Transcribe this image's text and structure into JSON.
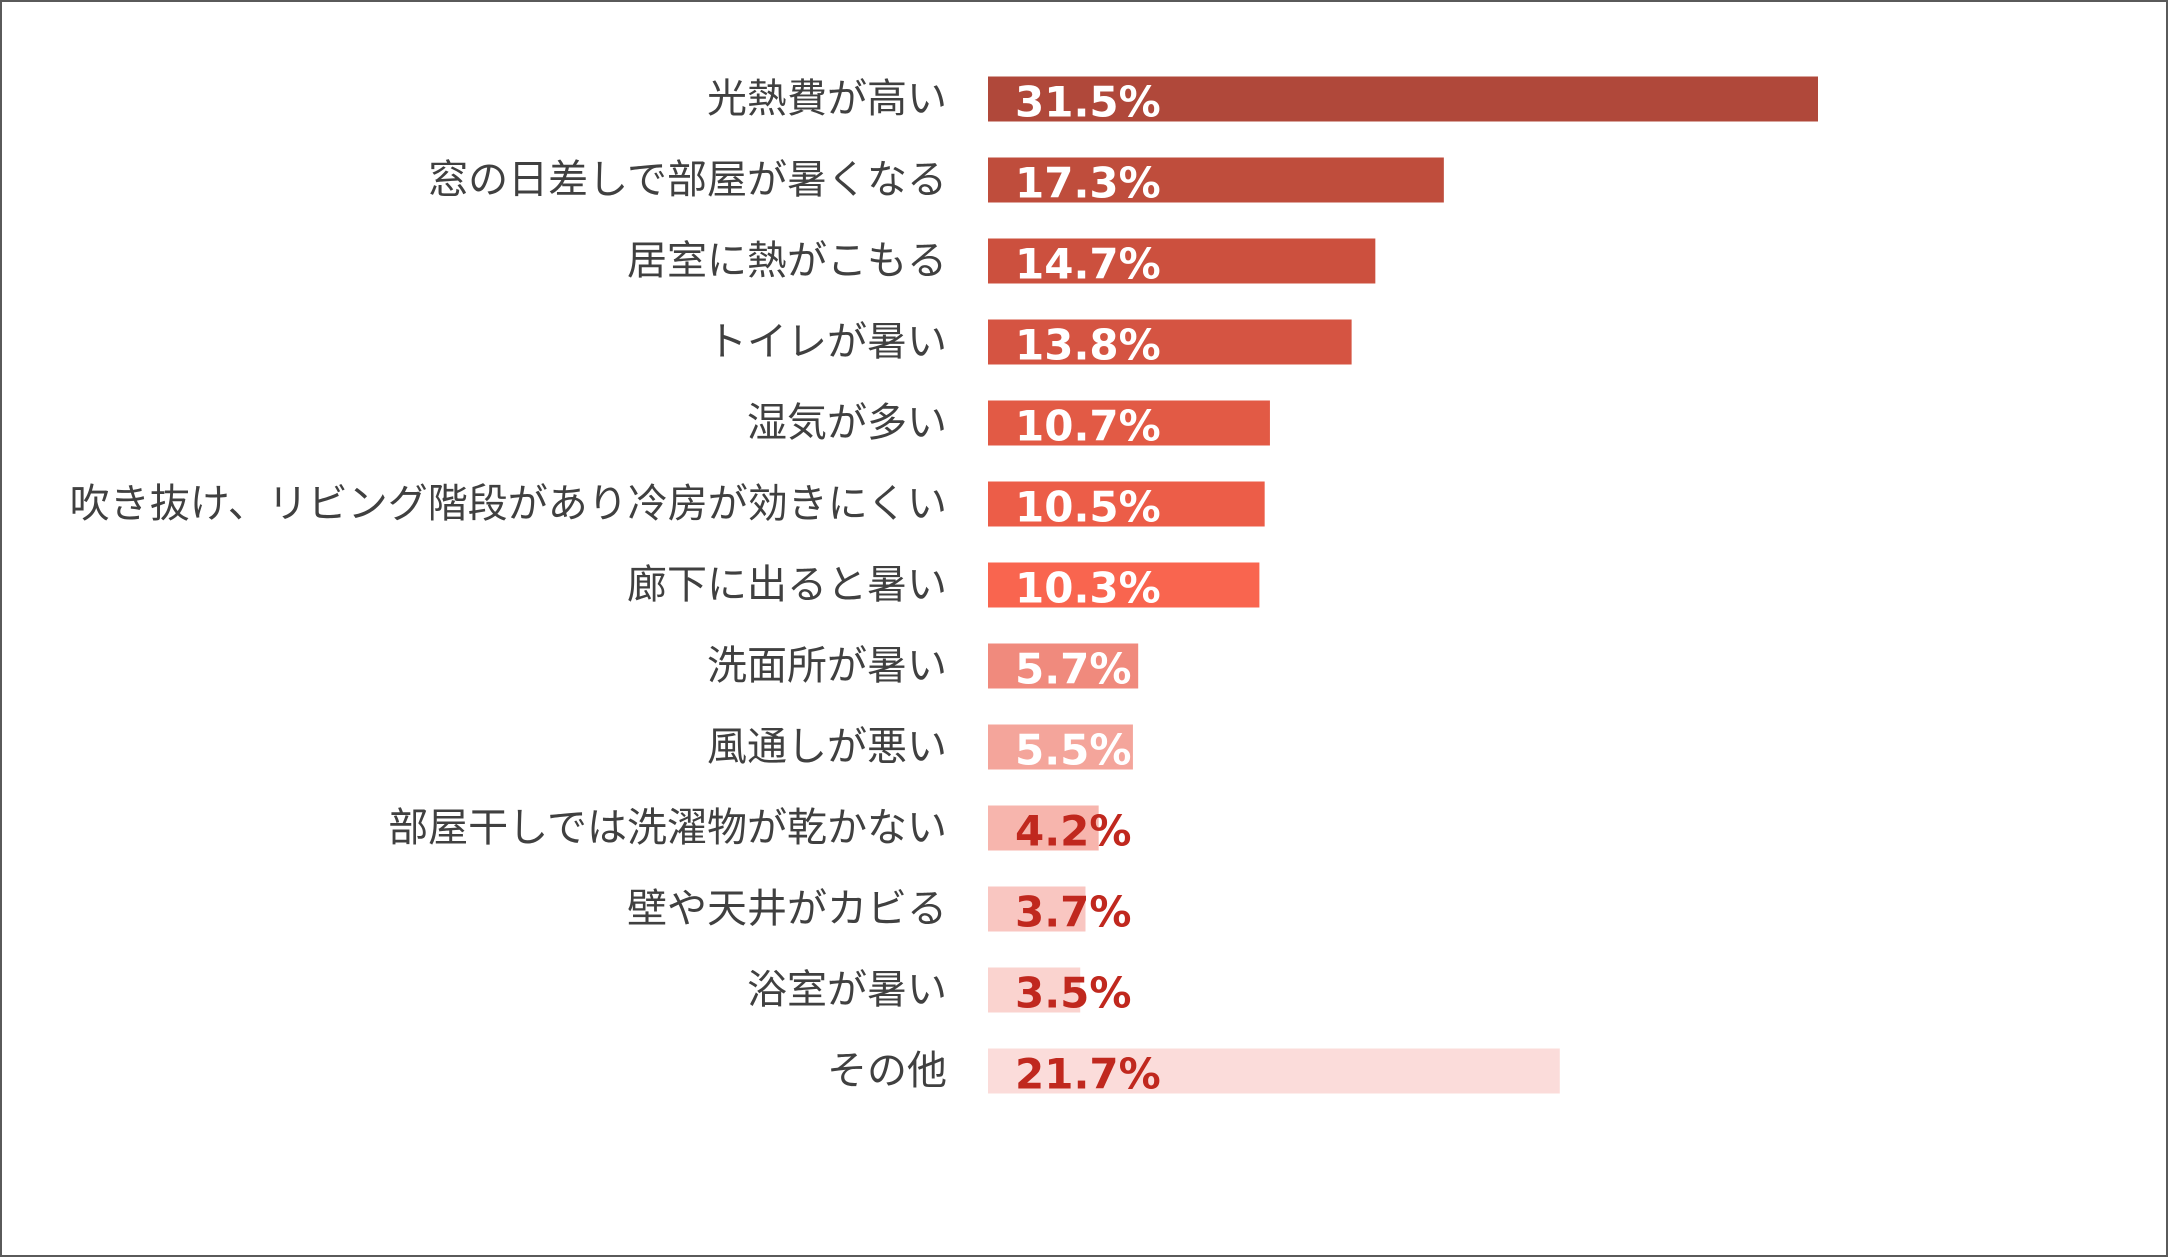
{
  "chart_data": {
    "type": "bar",
    "orientation": "horizontal",
    "title": "",
    "xlabel": "",
    "ylabel": "",
    "xlim": [
      0,
      40
    ],
    "grid": false,
    "legend": "none",
    "categories": [
      "光熱費が高い",
      "窓の日差しで部屋が暑くなる",
      "居室に熱がこもる",
      "トイレが暑い",
      "湿気が多い",
      "吹き抜け、リビング階段があり冷房が効きにくい",
      "廊下に出ると暑い",
      "洗面所が暑い",
      "風通しが悪い",
      "部屋干しでは洗濯物が乾かない",
      "壁や天井がカビる",
      "浴室が暑い",
      "その他"
    ],
    "values": [
      31.5,
      17.3,
      14.7,
      13.8,
      10.7,
      10.5,
      10.3,
      5.7,
      5.5,
      4.2,
      3.7,
      3.5,
      21.7
    ],
    "value_labels": [
      "31.5%",
      "17.3%",
      "14.7%",
      "13.8%",
      "10.7%",
      "10.5%",
      "10.3%",
      "5.7%",
      "5.5%",
      "4.2%",
      "3.7%",
      "3.5%",
      "21.7%"
    ],
    "bar_colors": [
      "#b0483a",
      "#bf4d3c",
      "#cc503e",
      "#d55442",
      "#e25a45",
      "#ec5d48",
      "#f9654f",
      "#f08a7d",
      "#f4a59b",
      "#f7b5ad",
      "#f9c6c1",
      "#fad3cf",
      "#fbdcda"
    ],
    "label_colors": [
      "#ffffff",
      "#ffffff",
      "#ffffff",
      "#ffffff",
      "#ffffff",
      "#ffffff",
      "#ffffff",
      "#ffffff",
      "#ffffff",
      "#c0281e",
      "#c0281e",
      "#c0281e",
      "#c0281e"
    ],
    "category_label_color": "#404040"
  }
}
